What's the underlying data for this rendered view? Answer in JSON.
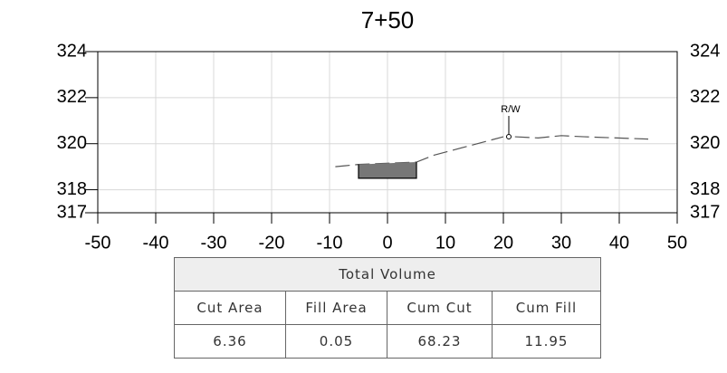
{
  "chart_data": {
    "type": "line",
    "title": "7+50",
    "xlim": [
      -50,
      50
    ],
    "xticks": [
      -50,
      -40,
      -30,
      -20,
      -10,
      0,
      10,
      20,
      30,
      40,
      50
    ],
    "ylim": [
      317,
      324
    ],
    "yticks": [
      317,
      318,
      320,
      322,
      324
    ],
    "grid": true,
    "series": [
      {
        "color": "#555555",
        "dash": true,
        "x": [
          -9,
          -5,
          5,
          8,
          20
        ],
        "values": [
          319.0,
          319.1,
          319.2,
          319.5,
          320.3
        ]
      },
      {
        "color": "#555555",
        "dash": true,
        "x": [
          22,
          26,
          30,
          34,
          45
        ],
        "values": [
          320.3,
          320.25,
          320.35,
          320.3,
          320.2
        ]
      },
      {
        "color": "#000000",
        "dash": false,
        "x": [
          -5,
          -5,
          5,
          5
        ],
        "values": [
          319.1,
          318.5,
          318.5,
          319.2
        ]
      }
    ],
    "annotation": "R/W"
  },
  "table": {
    "title": "Total Volume",
    "header": [
      "Cut Area",
      "Fill Area",
      "Cum Cut",
      "Cum Fill"
    ],
    "rows": [
      [
        "6.36",
        "0.05",
        "68.23",
        "11.95"
      ]
    ]
  }
}
